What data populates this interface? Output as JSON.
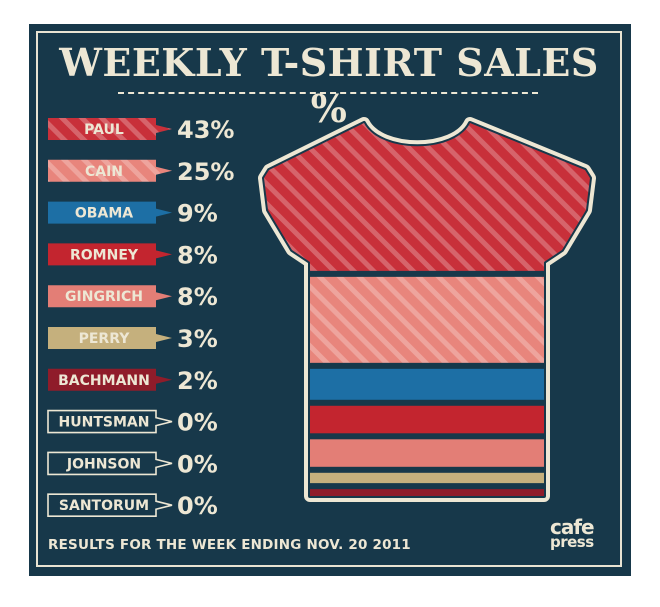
{
  "chart_data": {
    "type": "bar",
    "title": "WEEKLY T-SHIRT SALES %",
    "categories": [
      "PAUL",
      "CAIN",
      "OBAMA",
      "ROMNEY",
      "GINGRICH",
      "PERRY",
      "BACHMANN",
      "HUNTSMAN",
      "JOHNSON",
      "SANTORUM"
    ],
    "values": [
      43,
      25,
      9,
      8,
      8,
      3,
      2,
      0,
      0,
      0
    ],
    "value_labels": [
      "43%",
      "25%",
      "9%",
      "8%",
      "8%",
      "3%",
      "2%",
      "0%",
      "0%",
      "0%"
    ],
    "colors": [
      "#c8303a",
      "#e8857c",
      "#1d6fa5",
      "#c3252f",
      "#e37e76",
      "#c5b07d",
      "#8f1c2a",
      "none",
      "none",
      "none"
    ],
    "striped": [
      true,
      true,
      false,
      false,
      false,
      false,
      false,
      false,
      false,
      false
    ],
    "visual": "t-shirt stacked proportionally"
  },
  "footer": "RESULTS FOR THE WEEK ENDING NOV. 20 2011",
  "logo": {
    "line1": "cafe",
    "line2": "press"
  },
  "colors": {
    "background": "#17384a",
    "ink": "#ede7d4"
  }
}
